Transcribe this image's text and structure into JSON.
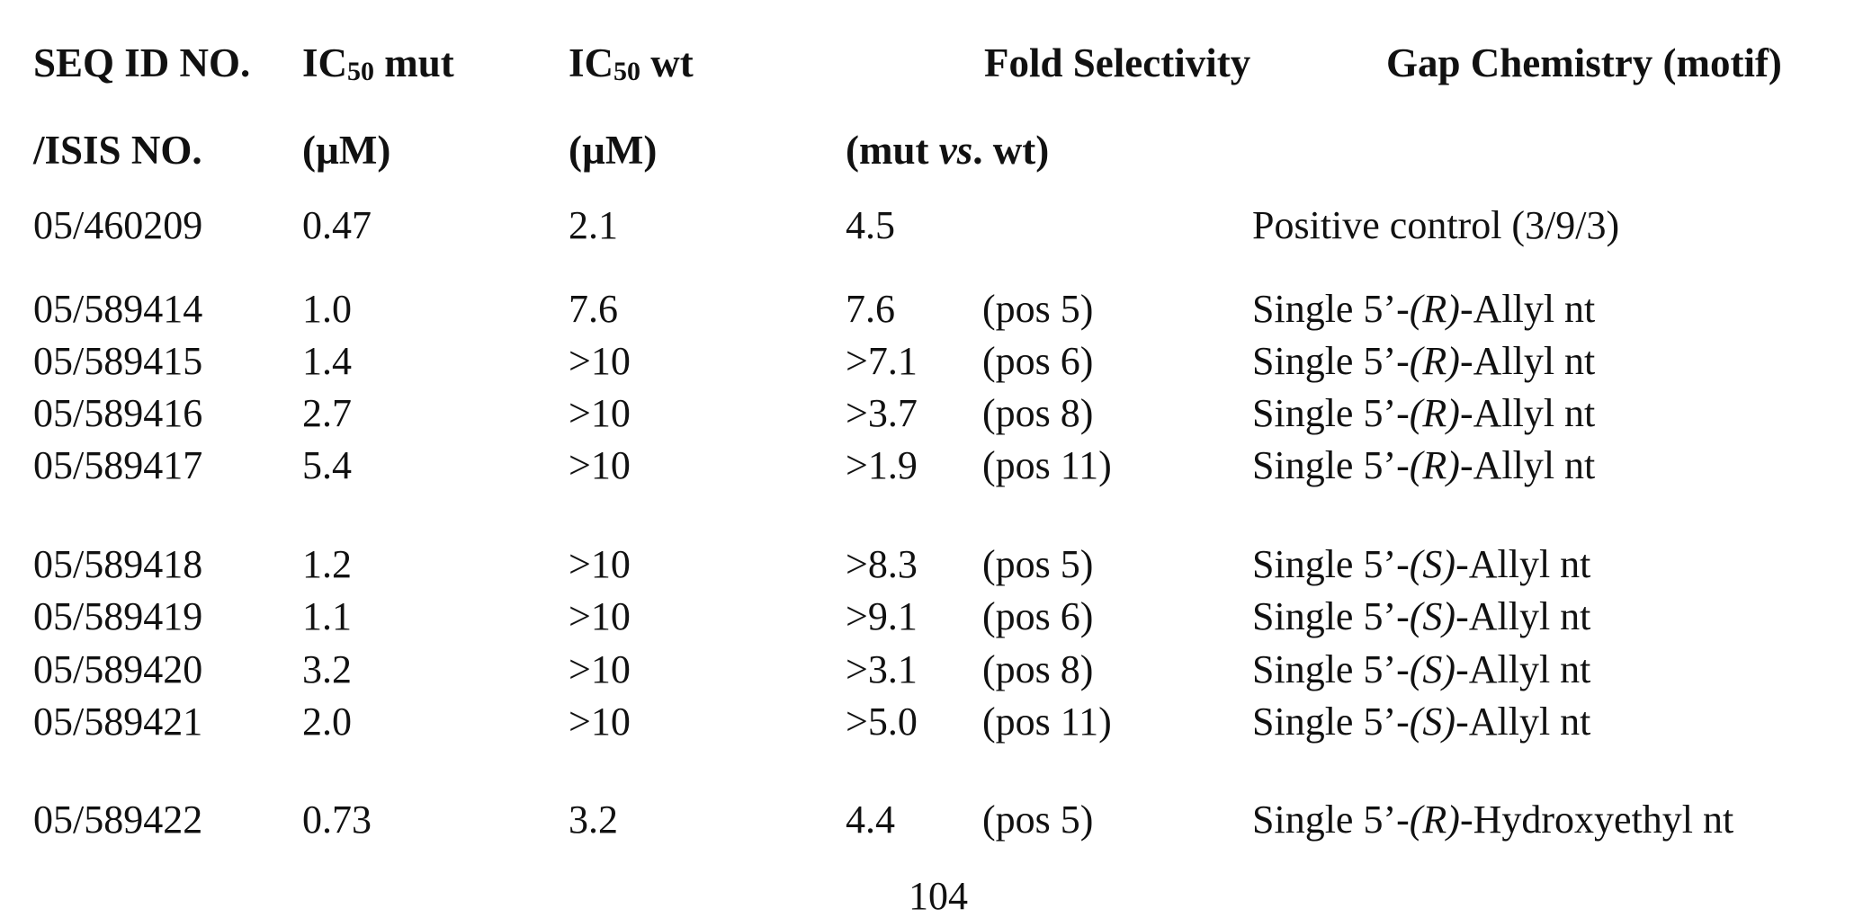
{
  "header": {
    "row1": {
      "seq_id": "SEQ ID NO.",
      "ic50_mut_prefix": "IC",
      "ic50_mut_sub": "50",
      "ic50_mut_suffix": " mut",
      "ic50_wt_prefix": "IC",
      "ic50_wt_sub": "50",
      "ic50_wt_suffix": " wt",
      "fold": "Fold Selectivity",
      "gap": "Gap Chemistry (motif)"
    },
    "row2": {
      "isis": "/ISIS NO.",
      "ic50_mut_unit": "(µM)",
      "ic50_wt_unit": "(µM)",
      "fold_prefix": "(mut ",
      "fold_vs": "vs",
      "fold_suffix": ". wt)"
    }
  },
  "rows": [
    {
      "id": "05/460209",
      "mut": "0.47",
      "wt": "2.1",
      "fold": "4.5",
      "pos": "",
      "gap_pre": "Positive control (3/9/3)",
      "gap_it": "",
      "gap_post": ""
    },
    {
      "id": "05/589414",
      "mut": "1.0",
      "wt": "7.6",
      "fold": "7.6",
      "pos": "(pos 5)",
      "gap_pre": "Single 5’-",
      "gap_it": "(R)",
      "gap_post": "-Allyl nt"
    },
    {
      "id": "05/589415",
      "mut": "1.4",
      "wt": ">10",
      "fold": ">7.1",
      "pos": "(pos 6)",
      "gap_pre": "Single 5’-",
      "gap_it": "(R)",
      "gap_post": "-Allyl nt"
    },
    {
      "id": "05/589416",
      "mut": "2.7",
      "wt": ">10",
      "fold": ">3.7",
      "pos": "(pos 8)",
      "gap_pre": "Single 5’-",
      "gap_it": "(R)",
      "gap_post": "-Allyl nt"
    },
    {
      "id": "05/589417",
      "mut": "5.4",
      "wt": ">10",
      "fold": ">1.9",
      "pos": "(pos 11)",
      "gap_pre": "Single 5’-",
      "gap_it": "(R)",
      "gap_post": "-Allyl nt"
    },
    {
      "id": "05/589418",
      "mut": "1.2",
      "wt": ">10",
      "fold": ">8.3",
      "pos": "(pos 5)",
      "gap_pre": "Single 5’-",
      "gap_it": "(S)",
      "gap_post": "-Allyl nt"
    },
    {
      "id": "05/589419",
      "mut": "1.1",
      "wt": ">10",
      "fold": ">9.1",
      "pos": "(pos 6)",
      "gap_pre": "Single 5’-",
      "gap_it": "(S)",
      "gap_post": "-Allyl nt"
    },
    {
      "id": "05/589420",
      "mut": "3.2",
      "wt": ">10",
      "fold": ">3.1",
      "pos": "(pos 8)",
      "gap_pre": "Single 5’-",
      "gap_it": "(S)",
      "gap_post": "-Allyl nt"
    },
    {
      "id": "05/589421",
      "mut": "2.0",
      "wt": ">10",
      "fold": ">5.0",
      "pos": "(pos 11)",
      "gap_pre": "Single 5’-",
      "gap_it": "(S)",
      "gap_post": "-Allyl nt"
    },
    {
      "id": "05/589422",
      "mut": "0.73",
      "wt": "3.2",
      "fold": "4.4",
      "pos": "(pos 5)",
      "gap_pre": "Single 5’-",
      "gap_it": "(R)",
      "gap_post": "-Hydroxyethyl nt"
    }
  ],
  "page_number": "104"
}
